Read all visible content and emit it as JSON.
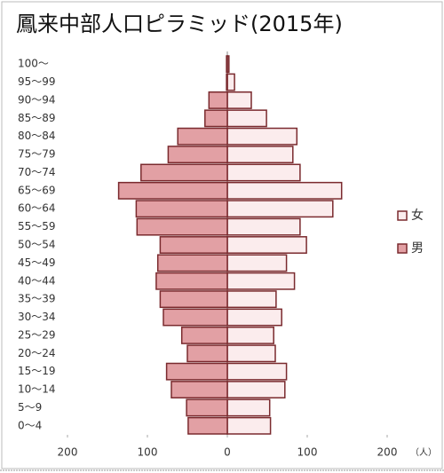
{
  "chart_data": {
    "type": "pyramid",
    "title": "鳳来中部人口ピラミッド(2015年)",
    "categories": [
      "100～",
      "95～99",
      "90～94",
      "85～89",
      "80～84",
      "75～79",
      "70～74",
      "65～69",
      "60～64",
      "55～59",
      "50～54",
      "45～49",
      "40～44",
      "35～39",
      "30～34",
      "25～29",
      "20～24",
      "15～19",
      "10～14",
      "5～9",
      "0～4"
    ],
    "series": [
      {
        "name": "女",
        "color": "#fbeced",
        "values": [
          2,
          9,
          30,
          49,
          87,
          82,
          91,
          143,
          132,
          91,
          99,
          74,
          84,
          61,
          68,
          58,
          60,
          74,
          72,
          53,
          54
        ]
      },
      {
        "name": "男",
        "color": "#e2a0a4",
        "values": [
          1,
          1,
          23,
          28,
          62,
          74,
          108,
          136,
          114,
          113,
          84,
          87,
          89,
          84,
          80,
          57,
          50,
          76,
          70,
          51,
          49
        ]
      }
    ],
    "xlim": [
      -200,
      200
    ],
    "xticks": [
      {
        "value": -200,
        "label": "200"
      },
      {
        "value": -100,
        "label": "100"
      },
      0,
      100,
      200
    ],
    "x_label": "（人）",
    "legend": "right"
  }
}
